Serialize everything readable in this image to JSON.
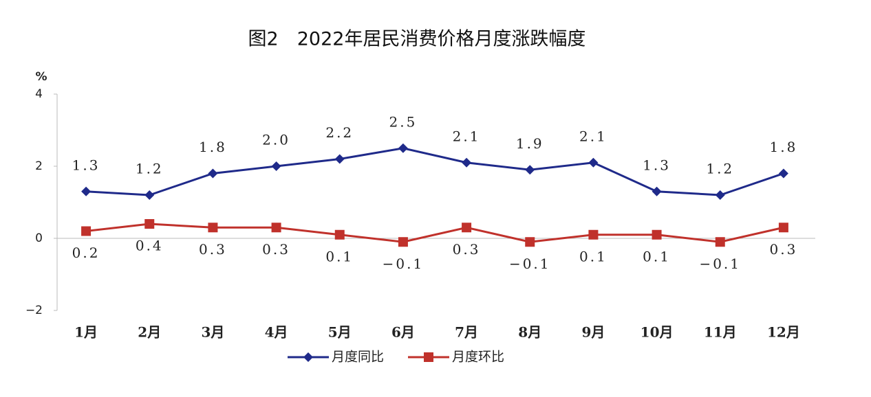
{
  "chart_data": {
    "type": "line",
    "title": "图2　2022年居民消费价格月度涨跌幅度",
    "y_label": "%",
    "categories": [
      "1月",
      "2月",
      "3月",
      "4月",
      "5月",
      "6月",
      "7月",
      "8月",
      "9月",
      "10月",
      "11月",
      "12月"
    ],
    "series": [
      {
        "name": "月度同比",
        "color": "#1f2a8a",
        "marker": "diamond",
        "values": [
          1.3,
          1.2,
          1.8,
          2.0,
          2.2,
          2.5,
          2.1,
          1.9,
          2.1,
          1.3,
          1.2,
          1.8
        ],
        "value_labels": [
          "1.3",
          "1.2",
          "1.8",
          "2.0",
          "2.2",
          "2.5",
          "2.1",
          "1.9",
          "2.1",
          "1.3",
          "1.2",
          "1.8"
        ]
      },
      {
        "name": "月度环比",
        "color": "#c0312b",
        "marker": "square",
        "values": [
          0.2,
          0.4,
          0.3,
          0.3,
          0.1,
          -0.1,
          0.3,
          -0.1,
          0.1,
          0.1,
          -0.1,
          0.3
        ],
        "value_labels": [
          "0.2",
          "0.4",
          "0.3",
          "0.3",
          "0.1",
          "−0.1",
          "0.3",
          "−0.1",
          "0.1",
          "0.1",
          "−0.1",
          "0.3"
        ]
      }
    ],
    "ylim": [
      -2,
      4
    ],
    "yticks": [
      {
        "value": -2,
        "label": "−2"
      },
      0,
      2,
      4
    ],
    "grid": false
  }
}
